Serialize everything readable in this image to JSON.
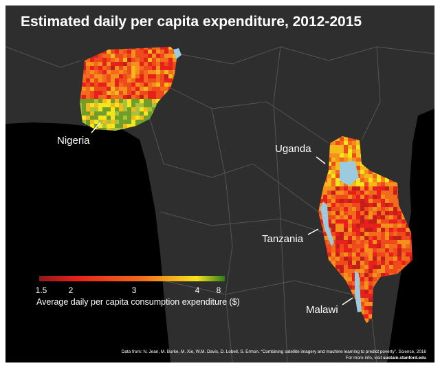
{
  "title": "Estimated daily per capita expenditure, 2012-2015",
  "countries": [
    {
      "name": "Nigeria"
    },
    {
      "name": "Uganda"
    },
    {
      "name": "Tanzania"
    },
    {
      "name": "Malawi"
    }
  ],
  "legend": {
    "title": "Average daily per capita consumption expenditure ($)",
    "ticks": [
      "1.5",
      "2",
      "3",
      "4",
      "8"
    ],
    "colors": [
      "#8b1a1a",
      "#e8201c",
      "#f26b1d",
      "#f7e51b",
      "#2f7d1a"
    ]
  },
  "credits": {
    "line1": "Data from: N. Jean, M. Burke, M. Xie, W.M. Davis, D. Lobell, S. Ermon. “Combining satellite imagery and machine learning to predict poverty”. Science, 2016",
    "line2_prefix": "For more info, visit",
    "line2_link": "sustain.stanford.edu"
  },
  "colors": {
    "ocean": "#000000",
    "land": "#2e2e2e",
    "borders": "#555555",
    "lake": "#9ccbe0"
  }
}
